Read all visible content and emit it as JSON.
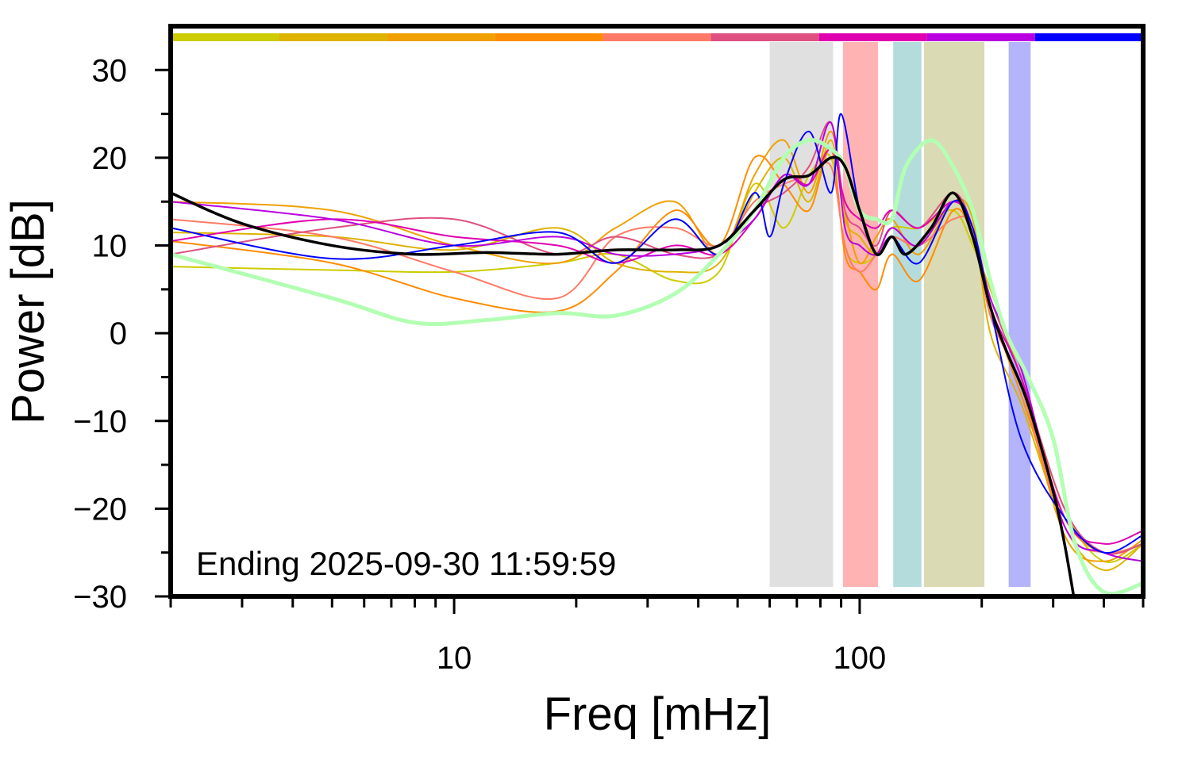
{
  "chart_data": {
    "type": "line",
    "title": "",
    "xlabel": "Freq [mHz]",
    "ylabel": "Power [dB]",
    "xscale": "log",
    "xlim": [
      2,
      500
    ],
    "ylim": [
      -30,
      35
    ],
    "x_tick_labels": [
      {
        "value": 10,
        "label": "10"
      },
      {
        "value": 100,
        "label": "100"
      }
    ],
    "y_tick_labels": [
      {
        "value": 30,
        "label": "30"
      },
      {
        "value": 20,
        "label": "20"
      },
      {
        "value": 10,
        "label": "10"
      },
      {
        "value": 0,
        "label": "0"
      },
      {
        "value": -10,
        "label": "−10"
      },
      {
        "value": -20,
        "label": "−20"
      },
      {
        "value": -30,
        "label": "−30"
      }
    ],
    "grid": false,
    "annotation": "Ending 2025-09-30 11:59:59",
    "color_strip": [
      "#cccc00",
      "#ddb300",
      "#f0a000",
      "#ff8c00",
      "#ff7a66",
      "#dd5080",
      "#e000b0",
      "#b800e0",
      "#0000ff"
    ],
    "bands": [
      {
        "from": 60,
        "to": 86,
        "color": "#e0e0e0"
      },
      {
        "from": 91,
        "to": 111,
        "color": "#ffb3b3"
      },
      {
        "from": 121,
        "to": 142,
        "color": "#b4dcdc"
      },
      {
        "from": 144,
        "to": 203,
        "color": "#dadab4"
      },
      {
        "from": 233,
        "to": 264,
        "color": "#b4b4fa"
      }
    ],
    "series": [
      {
        "color": "#cccc00",
        "x": [
          2,
          5,
          10,
          18,
          25,
          35,
          45,
          55,
          65,
          75,
          85,
          92,
          100,
          110,
          120,
          140,
          170,
          190,
          210,
          250,
          320,
          400,
          500
        ],
        "y": [
          7.6,
          7.2,
          7,
          8,
          9,
          6,
          7,
          17,
          12,
          18,
          20,
          10,
          8,
          9,
          12,
          12,
          14,
          10,
          5,
          -5,
          -20,
          -26,
          -24
        ]
      },
      {
        "color": "#ddb300",
        "x": [
          2,
          5,
          10,
          18,
          25,
          35,
          45,
          55,
          65,
          75,
          85,
          92,
          100,
          110,
          120,
          140,
          170,
          190,
          210,
          250,
          320,
          400,
          500
        ],
        "y": [
          11.5,
          11,
          9.5,
          12,
          8,
          7,
          8,
          16,
          20,
          15,
          22,
          13,
          11,
          9,
          12,
          10,
          15,
          13,
          0,
          -8,
          -22,
          -27,
          -24
        ]
      },
      {
        "color": "#f0a000",
        "x": [
          2,
          5,
          10,
          18,
          25,
          35,
          45,
          55,
          65,
          75,
          85,
          92,
          100,
          110,
          120,
          140,
          170,
          190,
          210,
          250,
          320,
          400,
          500
        ],
        "y": [
          15,
          14,
          10,
          8,
          12,
          15,
          9,
          18,
          22,
          16,
          23,
          14,
          8,
          11,
          13,
          9,
          15,
          12,
          2,
          -6,
          -23,
          -26,
          -23.5
        ]
      },
      {
        "color": "#ff8c00",
        "x": [
          2,
          5,
          10,
          18,
          25,
          35,
          45,
          55,
          65,
          75,
          85,
          92,
          100,
          110,
          120,
          140,
          170,
          190,
          210,
          250,
          320,
          400,
          500
        ],
        "y": [
          10.5,
          8,
          4,
          2.5,
          7,
          14,
          10,
          20,
          17,
          14,
          21,
          9,
          7,
          5,
          9,
          6,
          14,
          11,
          3,
          -7,
          -21,
          -25,
          -24
        ]
      },
      {
        "color": "#ff7a66",
        "x": [
          2,
          5,
          10,
          18,
          25,
          35,
          45,
          55,
          65,
          75,
          85,
          92,
          100,
          110,
          120,
          140,
          170,
          190,
          210,
          250,
          320,
          400,
          500
        ],
        "y": [
          13,
          11,
          7,
          4,
          11,
          12,
          10,
          15,
          17,
          18,
          19,
          10,
          7,
          9,
          11,
          10,
          13,
          12,
          2,
          -6,
          -22,
          -25,
          -24
        ]
      },
      {
        "color": "#dd5080",
        "x": [
          2,
          5,
          10,
          18,
          25,
          35,
          45,
          55,
          65,
          75,
          85,
          92,
          100,
          110,
          120,
          140,
          170,
          190,
          210,
          250,
          320,
          400,
          500
        ],
        "y": [
          9,
          12,
          13,
          9,
          11,
          9,
          9,
          14,
          16,
          19,
          24,
          14,
          12,
          10,
          14,
          12,
          16,
          12,
          4,
          -5,
          -20,
          -25,
          -24
        ]
      },
      {
        "color": "#e000b0",
        "x": [
          2,
          5,
          10,
          18,
          25,
          35,
          45,
          55,
          65,
          75,
          85,
          92,
          100,
          110,
          120,
          140,
          170,
          190,
          210,
          250,
          320,
          400,
          500
        ],
        "y": [
          10.5,
          13,
          11,
          10,
          8,
          10,
          9,
          13,
          18,
          17,
          21,
          15,
          13,
          12,
          14,
          12,
          15,
          12,
          3,
          -5,
          -21,
          -24,
          -22.5
        ]
      },
      {
        "color": "#b800e0",
        "x": [
          2,
          5,
          10,
          18,
          25,
          35,
          45,
          55,
          65,
          75,
          85,
          92,
          100,
          110,
          120,
          140,
          170,
          190,
          210,
          250,
          320,
          400,
          500
        ],
        "y": [
          15,
          13,
          10,
          11,
          9,
          9,
          10,
          13,
          18,
          17,
          24,
          12,
          10,
          9,
          12,
          10,
          15,
          12,
          4,
          -4,
          -22,
          -25,
          -26
        ]
      },
      {
        "color": "#0000ff",
        "x": [
          2,
          5,
          10,
          18,
          25,
          35,
          45,
          55,
          60,
          65,
          75,
          85,
          90,
          100,
          110,
          120,
          140,
          170,
          190,
          210,
          250,
          320,
          400,
          500
        ],
        "y": [
          12,
          8.5,
          10,
          11.5,
          8,
          13,
          9,
          16,
          11,
          17,
          23,
          16,
          25,
          14,
          9,
          11,
          8,
          15,
          12,
          3,
          -12,
          -21,
          -25,
          -23
        ]
      },
      {
        "color": "#b3ffb3",
        "x": [
          2,
          5,
          8,
          12,
          18,
          25,
          35,
          45,
          55,
          65,
          75,
          85,
          92,
          100,
          110,
          120,
          130,
          150,
          170,
          190,
          210,
          230,
          260,
          300,
          340,
          400,
          500
        ],
        "y": [
          9,
          4,
          1.2,
          1.5,
          2.3,
          2,
          4.5,
          9,
          14,
          20,
          22,
          21,
          19,
          14,
          13,
          13,
          19,
          22,
          19,
          14,
          6,
          0,
          -5,
          -12,
          -24,
          -29.5,
          -28.5
        ]
      },
      {
        "color": "#000000",
        "x": [
          2,
          3,
          5,
          8,
          12,
          18,
          25,
          35,
          45,
          55,
          65,
          75,
          85,
          92,
          100,
          110,
          120,
          130,
          150,
          170,
          190,
          210,
          230,
          260,
          300,
          320,
          340
        ],
        "y": [
          16,
          12.5,
          10,
          9,
          9.2,
          9,
          9.5,
          9.5,
          10,
          14,
          17.5,
          18,
          20,
          19,
          14,
          9,
          11,
          9,
          12,
          16,
          11,
          3,
          -2,
          -8,
          -18,
          -24,
          -31
        ]
      }
    ]
  }
}
